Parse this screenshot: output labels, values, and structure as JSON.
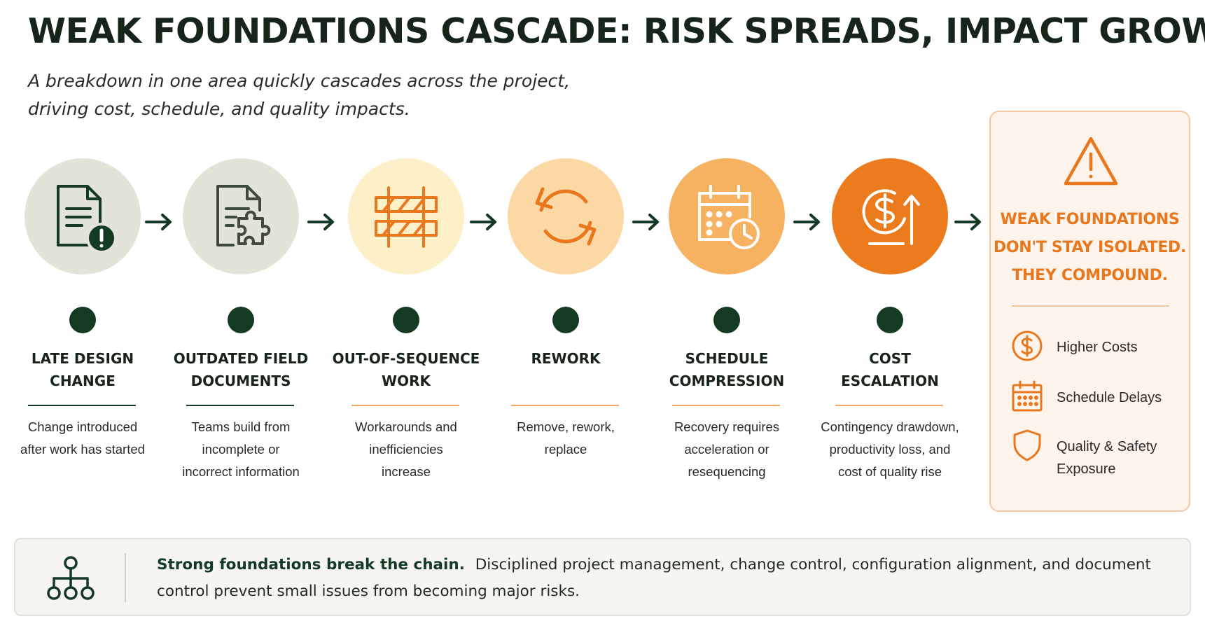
{
  "title": "WEAK FOUNDATIONS CASCADE: RISK SPREADS, IMPACT GROWS",
  "subtitle": "A breakdown in one area quickly cascades across the project, driving cost, schedule, and quality impacts.",
  "colors": {
    "dark_green": "#143a24",
    "orange": "#e8771d",
    "stage_circles": [
      "#e3e4d8",
      "#e3e4d8",
      "#fdefc7",
      "#fbd8a4",
      "#f6b261",
      "#ec7b1e"
    ]
  },
  "stages": [
    {
      "icon": "document-alert-icon",
      "title": "LATE DESIGN\nCHANGE",
      "description": "Change introduced\nafter work has started"
    },
    {
      "icon": "document-puzzle-icon",
      "title": "OUTDATED FIELD\nDOCUMENTS",
      "description": "Teams build from\nincomplete or\nincorrect information"
    },
    {
      "icon": "barrier-icon",
      "title": "OUT-OF-SEQUENCE\nWORK",
      "description": "Workarounds and\ninefficiencies\nincrease"
    },
    {
      "icon": "cycle-arrows-icon",
      "title": "REWORK",
      "description": "Remove, rework,\nreplace"
    },
    {
      "icon": "calendar-clock-icon",
      "title": "SCHEDULE\nCOMPRESSION",
      "description": "Recovery requires\nacceleration or\nresequencing"
    },
    {
      "icon": "dollar-rising-icon",
      "title": "COST\nESCALATION",
      "description": "Contingency drawdown,\nproductivity loss, and\ncost of quality rise"
    }
  ],
  "panel": {
    "icon": "warning-triangle-icon",
    "heading": "WEAK FOUNDATIONS\nDON'T STAY ISOLATED.\nTHEY COMPOUND.",
    "impacts": [
      {
        "icon": "dollar-circle-icon",
        "label": "Higher Costs"
      },
      {
        "icon": "calendar-icon",
        "label": "Schedule Delays"
      },
      {
        "icon": "shield-icon",
        "label": "Quality & Safety Exposure"
      }
    ]
  },
  "footer": {
    "icon": "hierarchy-icon",
    "bold": "Strong foundations break the chain.",
    "text": "Disciplined project management, change control, configuration alignment, and document control prevent small issues from becoming major risks."
  }
}
